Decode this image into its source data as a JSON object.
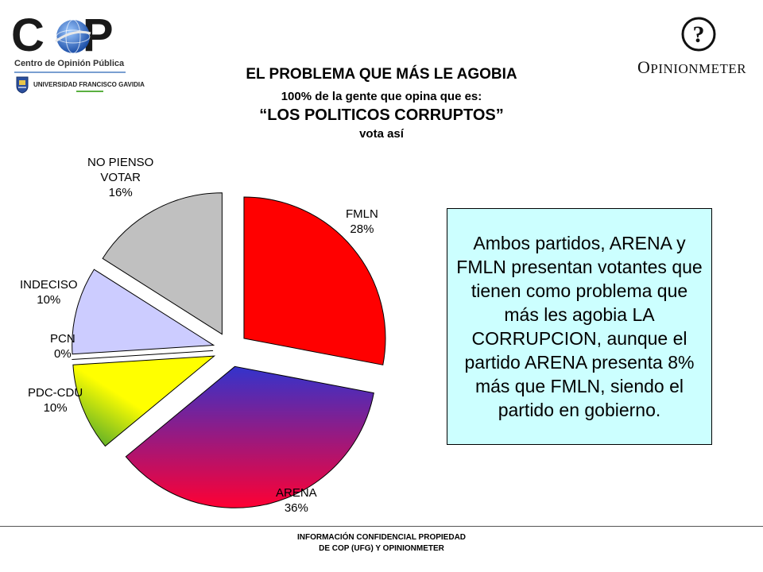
{
  "logos": {
    "cop_word": "COP",
    "cop_subtitle": "Centro de Opinión Pública",
    "ufg_name": "UNIVERSIDAD FRANCISCO GAVIDIA",
    "ufg_abbr": "UFG",
    "opinionmeter": "OPINIONMETER",
    "opinionmeter_initial": "O",
    "opinionmeter_rest": "PINIONMETER",
    "opinionmeter_mark_icon": "question-mark-circle-icon",
    "cop_globe_icon": "globe-icon",
    "ufg_crest_icon": "crest-icon"
  },
  "chart_data": {
    "type": "pie",
    "title": "EL PROBLEMA QUE MÁS LE AGOBIA",
    "subtitle_line1": "100% de la gente que opina que es:",
    "subtitle_line2": "“LOS POLITICOS CORRUPTOS”",
    "subtitle_line3": "vota así",
    "exploded": true,
    "slices": [
      {
        "label": "FMLN",
        "value": 28,
        "value_label": "28%",
        "color": "#ff0000"
      },
      {
        "label": "ARENA",
        "value": 36,
        "value_label": "36%",
        "color_from": "#3333cc",
        "color_to": "#ff0033"
      },
      {
        "label": "PDC-CDU",
        "value": 10,
        "value_label": "10%",
        "color_from": "#ffff00",
        "color_to": "#339933"
      },
      {
        "label": "PCN",
        "value": 0,
        "value_label": "0%",
        "color": "#66cc66"
      },
      {
        "label": "INDECISO",
        "value": 10,
        "value_label": "10%",
        "color": "#ccccff"
      },
      {
        "label": "NO PIENSO VOTAR",
        "label_line1": "NO PIENSO",
        "label_line2": "VOTAR",
        "value": 16,
        "value_label": "16%",
        "color": "#c0c0c0"
      }
    ]
  },
  "note": {
    "text": "Ambos partidos, ARENA y FMLN presentan votantes que tienen como problema que más les agobia LA CORRUPCION, aunque el partido ARENA presenta 8% más que FMLN, siendo el partido en gobierno.",
    "background": "#ccffff"
  },
  "footer": {
    "line1": "INFORMACIÓN CONFIDENCIAL PROPIEDAD",
    "line2": "DE COP (UFG) Y OPINIONMETER"
  }
}
